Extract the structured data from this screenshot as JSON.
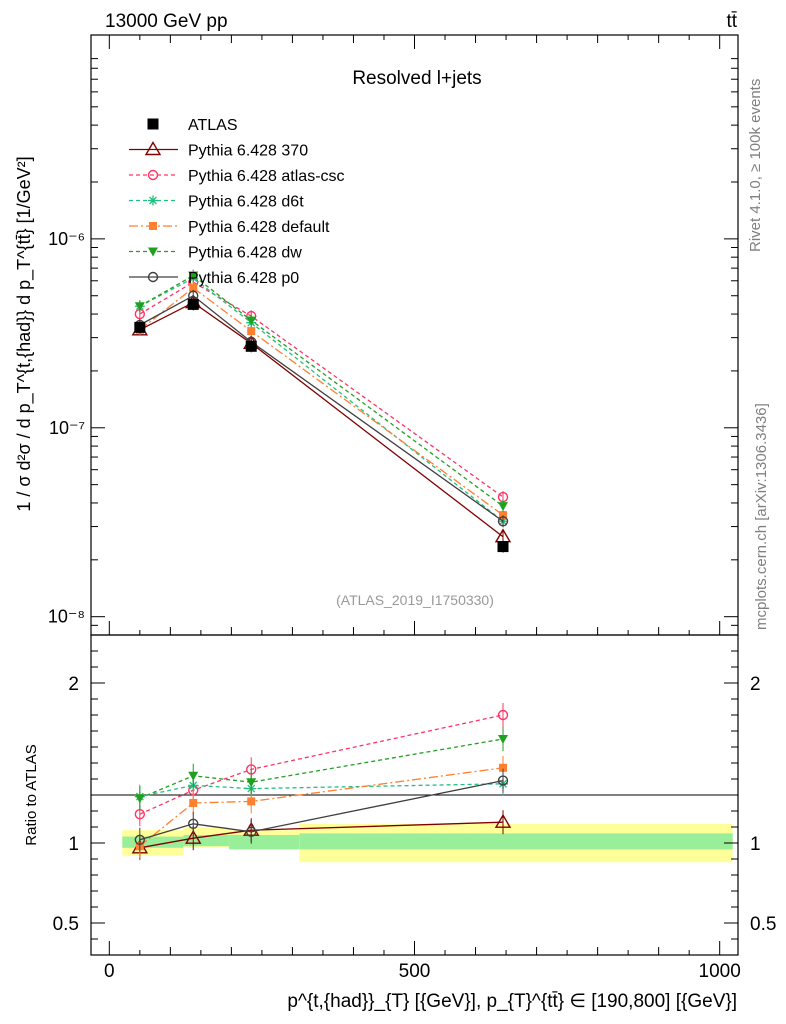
{
  "header": {
    "beam": "13000 GeV pp",
    "process": "tt̄"
  },
  "side_labels": {
    "rivet": "Rivet 4.1.0, ≥ 100k events",
    "mcplots": "mcplots.cern.ch [arXiv:1306.3436]"
  },
  "chart_data": [
    {
      "type": "line",
      "panel": "main",
      "title": "Resolved l+jets",
      "analysis_tag": "(ATLAS_2019_I1750330)",
      "ylabel": "1 / σ d²σ / d p_T^{t,{had}} d p_T^{tt̄} [1/GeV²]",
      "yscale": "log",
      "ylim": [
        8e-09,
        1.2e-05
      ],
      "xlim": [
        -30,
        1030
      ],
      "y_tick_labels": [
        "10⁻⁸",
        "10⁻⁷",
        "10⁻⁶"
      ],
      "x": [
        50,
        137.5,
        232.5,
        645
      ],
      "series": [
        {
          "name": "ATLAS",
          "color": "#000000",
          "marker": "square",
          "dash": "",
          "values": [
            3.4e-07,
            4.5e-07,
            2.7e-07,
            2.35e-08
          ]
        },
        {
          "name": "Pythia 6.428 370",
          "color": "#800000",
          "marker": "open-triangle",
          "dash": "",
          "values": [
            3.3e-07,
            4.6e-07,
            2.8e-07,
            2.65e-08
          ]
        },
        {
          "name": "Pythia 6.428 atlas-csc",
          "color": "#ff3366",
          "marker": "open-circle",
          "dash": "4,3",
          "values": [
            4e-07,
            5.9e-07,
            3.9e-07,
            4.3e-08
          ]
        },
        {
          "name": "Pythia 6.428 d6t",
          "color": "#20c080",
          "marker": "asterisk",
          "dash": "4,3",
          "values": [
            4.4e-07,
            6.2e-07,
            3.6e-07,
            3.2e-08
          ]
        },
        {
          "name": "Pythia 6.428 default",
          "color": "#ff8030",
          "marker": "filled-square",
          "dash": "9,3,2,3",
          "values": [
            3.3e-07,
            5.5e-07,
            3.25e-07,
            3.45e-08
          ]
        },
        {
          "name": "Pythia 6.428 dw",
          "color": "#20a020",
          "marker": "filled-triangle-down",
          "dash": "4,3",
          "values": [
            4.4e-07,
            6.4e-07,
            3.7e-07,
            3.85e-08
          ]
        },
        {
          "name": "Pythia 6.428 p0",
          "color": "#404040",
          "marker": "open-circle",
          "dash": "",
          "values": [
            3.5e-07,
            5e-07,
            2.85e-07,
            3.2e-08
          ]
        }
      ]
    },
    {
      "type": "line",
      "panel": "ratio",
      "ylabel": "Ratio to ATLAS",
      "ylim": [
        0.3,
        2.3
      ],
      "xlim": [
        -30,
        1030
      ],
      "y_tick_labels": [
        "0.5",
        "1",
        "2"
      ],
      "x_tick_labels": [
        "0",
        "500",
        "1000"
      ],
      "xlabel": "p^{t,{had}}_{T} [{GeV}], p_{T}^{tt̄} ∈ [190,800] [{GeV}]",
      "x": [
        50,
        137.5,
        232.5,
        645
      ],
      "uncertainty_bins": [
        {
          "from": 0,
          "to": 100,
          "stat": [
            0.97,
            1.04
          ],
          "total": [
            0.92,
            1.08
          ]
        },
        {
          "from": 100,
          "to": 175,
          "stat": [
            0.98,
            1.05
          ],
          "total": [
            0.97,
            1.1
          ]
        },
        {
          "from": 175,
          "to": 290,
          "stat": [
            0.96,
            1.05
          ],
          "total": [
            0.96,
            1.08
          ]
        },
        {
          "from": 290,
          "to": 1000,
          "stat": [
            0.96,
            1.06
          ],
          "total": [
            0.88,
            1.12
          ]
        }
      ],
      "series": [
        {
          "name": "Pythia 6.428 370",
          "color": "#800000",
          "marker": "open-triangle",
          "dash": "",
          "values": [
            0.97,
            1.03,
            1.08,
            1.13
          ]
        },
        {
          "name": "Pythia 6.428 atlas-csc",
          "color": "#ff3366",
          "marker": "open-circle",
          "dash": "4,3",
          "values": [
            1.18,
            1.33,
            1.46,
            1.8
          ]
        },
        {
          "name": "Pythia 6.428 d6t",
          "color": "#20c080",
          "marker": "asterisk",
          "dash": "4,3",
          "values": [
            1.29,
            1.36,
            1.34,
            1.37
          ]
        },
        {
          "name": "Pythia 6.428 default",
          "color": "#ff8030",
          "marker": "filled-square",
          "dash": "9,3,2,3",
          "values": [
            0.98,
            1.25,
            1.26,
            1.47
          ]
        },
        {
          "name": "Pythia 6.428 dw",
          "color": "#20a020",
          "marker": "filled-triangle-down",
          "dash": "4,3",
          "values": [
            1.28,
            1.42,
            1.38,
            1.65
          ]
        },
        {
          "name": "Pythia 6.428 p0",
          "color": "#404040",
          "marker": "open-circle",
          "dash": "",
          "values": [
            1.02,
            1.12,
            1.07,
            1.39
          ]
        }
      ]
    }
  ]
}
